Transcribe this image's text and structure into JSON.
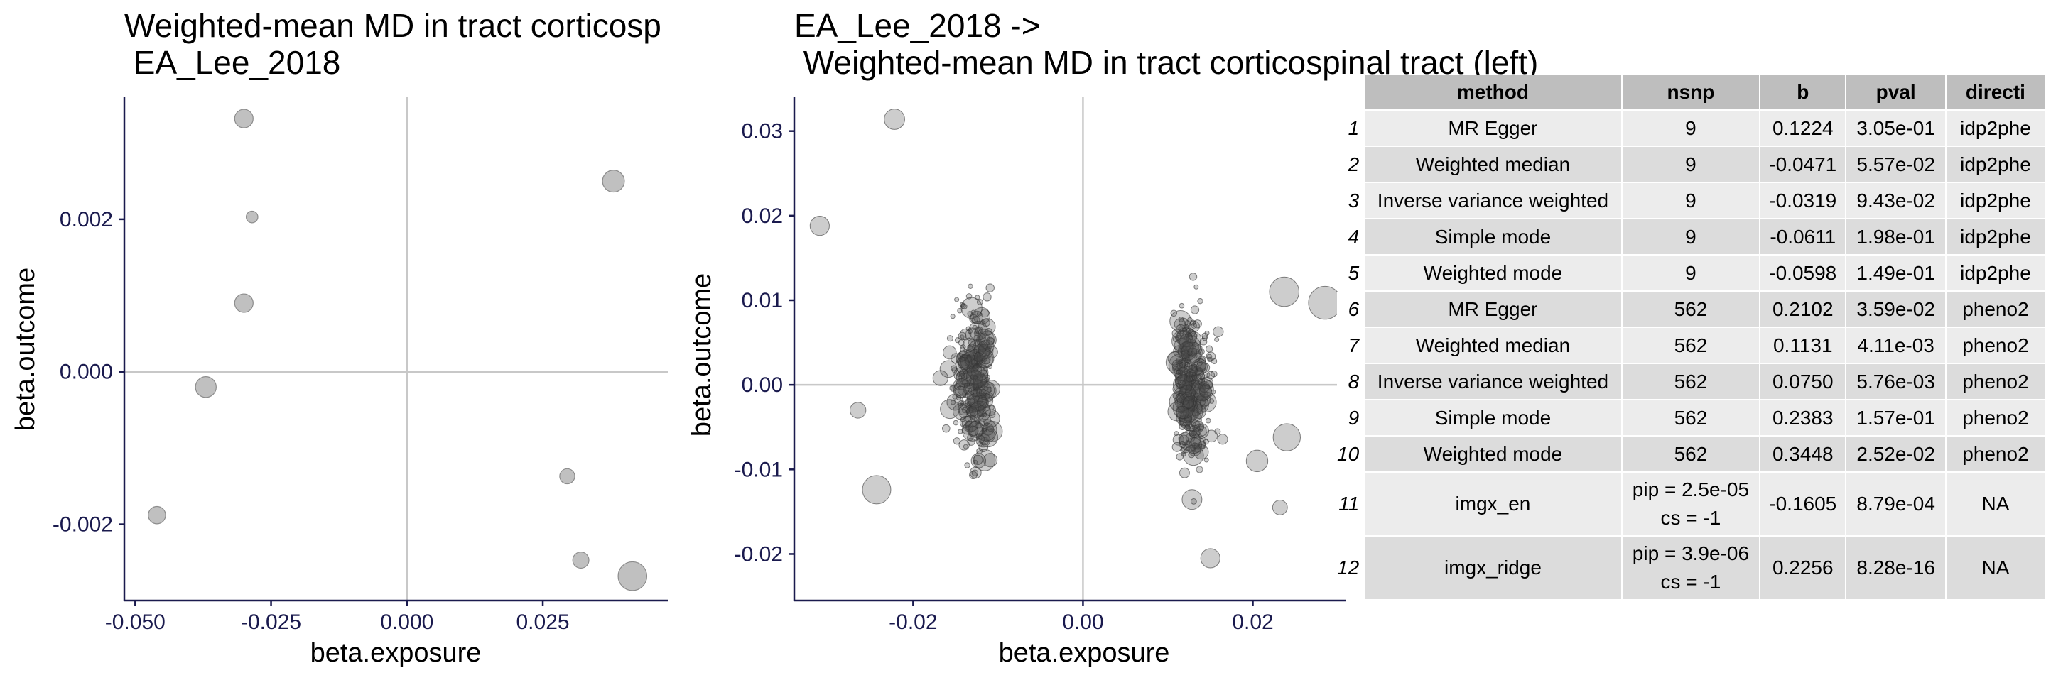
{
  "chart_data": [
    {
      "type": "scatter",
      "title_line1": "Weighted-mean MD in tract corticosp",
      "title_line2": " EA_Lee_2018",
      "xlabel": "beta.exposure",
      "ylabel": "beta.outcome",
      "xlim": [
        -0.052,
        0.048
      ],
      "ylim": [
        -0.003,
        0.0036
      ],
      "x_ticks": [
        -0.05,
        -0.025,
        0.0,
        0.025
      ],
      "x_tick_labels": [
        "-0.050",
        "-0.025",
        "0.000",
        "0.025"
      ],
      "y_ticks": [
        -0.002,
        0.0,
        0.002
      ],
      "y_tick_labels": [
        "-0.002",
        "0.000",
        "0.002"
      ],
      "points": [
        {
          "x": -0.03,
          "y": 0.00332,
          "size": 1.0
        },
        {
          "x": -0.0285,
          "y": 0.00203,
          "size": 0.4
        },
        {
          "x": -0.03,
          "y": 0.0009,
          "size": 1.0
        },
        {
          "x": -0.037,
          "y": -0.0002,
          "size": 1.2
        },
        {
          "x": -0.046,
          "y": -0.00188,
          "size": 0.9
        },
        {
          "x": 0.038,
          "y": 0.0025,
          "size": 1.3
        },
        {
          "x": 0.0295,
          "y": -0.00137,
          "size": 0.7
        },
        {
          "x": 0.032,
          "y": -0.00247,
          "size": 0.8
        },
        {
          "x": 0.0415,
          "y": -0.00268,
          "size": 1.9
        }
      ]
    },
    {
      "type": "scatter",
      "title_line1": "EA_Lee_2018 ->",
      "title_line2": " Weighted-mean MD in tract corticospinal tract (left)",
      "xlabel": "beta.exposure",
      "ylabel": "beta.outcome",
      "xlim": [
        -0.034,
        0.031
      ],
      "ylim": [
        -0.0255,
        0.034
      ],
      "x_ticks": [
        -0.02,
        0.0,
        0.02
      ],
      "x_tick_labels": [
        "-0.02",
        "0.00",
        "0.02"
      ],
      "y_ticks": [
        -0.02,
        -0.01,
        0.0,
        0.01,
        0.02,
        0.03
      ],
      "y_tick_labels": [
        "-0.02",
        "-0.01",
        "0.00",
        "0.01",
        "0.02",
        "0.03"
      ],
      "n_points": 562,
      "points_highlight": [
        {
          "x": -0.0222,
          "y": 0.0314,
          "size": 1.3
        },
        {
          "x": -0.031,
          "y": 0.0188,
          "size": 1.2
        },
        {
          "x": -0.0243,
          "y": -0.0124,
          "size": 2.0
        },
        {
          "x": -0.0265,
          "y": -0.003,
          "size": 0.9
        },
        {
          "x": 0.0285,
          "y": 0.0097,
          "size": 2.4
        },
        {
          "x": 0.0237,
          "y": 0.011,
          "size": 2.1
        },
        {
          "x": 0.024,
          "y": -0.0062,
          "size": 1.9
        },
        {
          "x": 0.015,
          "y": -0.0205,
          "size": 1.2
        },
        {
          "x": 0.0205,
          "y": -0.009,
          "size": 1.4
        },
        {
          "x": 0.0232,
          "y": -0.0145,
          "size": 0.8
        }
      ]
    }
  ],
  "table": {
    "headers": [
      "method",
      "nsnp",
      "b",
      "pval",
      "directi"
    ],
    "rows": [
      {
        "rn": "1",
        "method": "MR Egger",
        "nsnp_1": "9",
        "nsnp_2": "",
        "b": "0.1224",
        "pval": "3.05e-01",
        "dir": "idp2phe"
      },
      {
        "rn": "2",
        "method": "Weighted median",
        "nsnp_1": "9",
        "nsnp_2": "",
        "b": "-0.0471",
        "pval": "5.57e-02",
        "dir": "idp2phe"
      },
      {
        "rn": "3",
        "method": "Inverse variance weighted",
        "nsnp_1": "9",
        "nsnp_2": "",
        "b": "-0.0319",
        "pval": "9.43e-02",
        "dir": "idp2phe"
      },
      {
        "rn": "4",
        "method": "Simple mode",
        "nsnp_1": "9",
        "nsnp_2": "",
        "b": "-0.0611",
        "pval": "1.98e-01",
        "dir": "idp2phe"
      },
      {
        "rn": "5",
        "method": "Weighted mode",
        "nsnp_1": "9",
        "nsnp_2": "",
        "b": "-0.0598",
        "pval": "1.49e-01",
        "dir": "idp2phe"
      },
      {
        "rn": "6",
        "method": "MR Egger",
        "nsnp_1": "562",
        "nsnp_2": "",
        "b": "0.2102",
        "pval": "3.59e-02",
        "dir": "pheno2"
      },
      {
        "rn": "7",
        "method": "Weighted median",
        "nsnp_1": "562",
        "nsnp_2": "",
        "b": "0.1131",
        "pval": "4.11e-03",
        "dir": "pheno2"
      },
      {
        "rn": "8",
        "method": "Inverse variance weighted",
        "nsnp_1": "562",
        "nsnp_2": "",
        "b": "0.0750",
        "pval": "5.76e-03",
        "dir": "pheno2"
      },
      {
        "rn": "9",
        "method": "Simple mode",
        "nsnp_1": "562",
        "nsnp_2": "",
        "b": "0.2383",
        "pval": "1.57e-01",
        "dir": "pheno2"
      },
      {
        "rn": "10",
        "method": "Weighted mode",
        "nsnp_1": "562",
        "nsnp_2": "",
        "b": "0.3448",
        "pval": "2.52e-02",
        "dir": "pheno2"
      },
      {
        "rn": "11",
        "method": "imgx_en",
        "nsnp_1": "pip = 2.5e-05",
        "nsnp_2": "cs = -1",
        "b": "-0.1605",
        "pval": "8.79e-04",
        "dir": "NA"
      },
      {
        "rn": "12",
        "method": "imgx_ridge",
        "nsnp_1": "pip = 3.9e-06",
        "nsnp_2": "cs = -1",
        "b": "0.2256",
        "pval": "8.28e-16",
        "dir": "NA"
      }
    ]
  }
}
